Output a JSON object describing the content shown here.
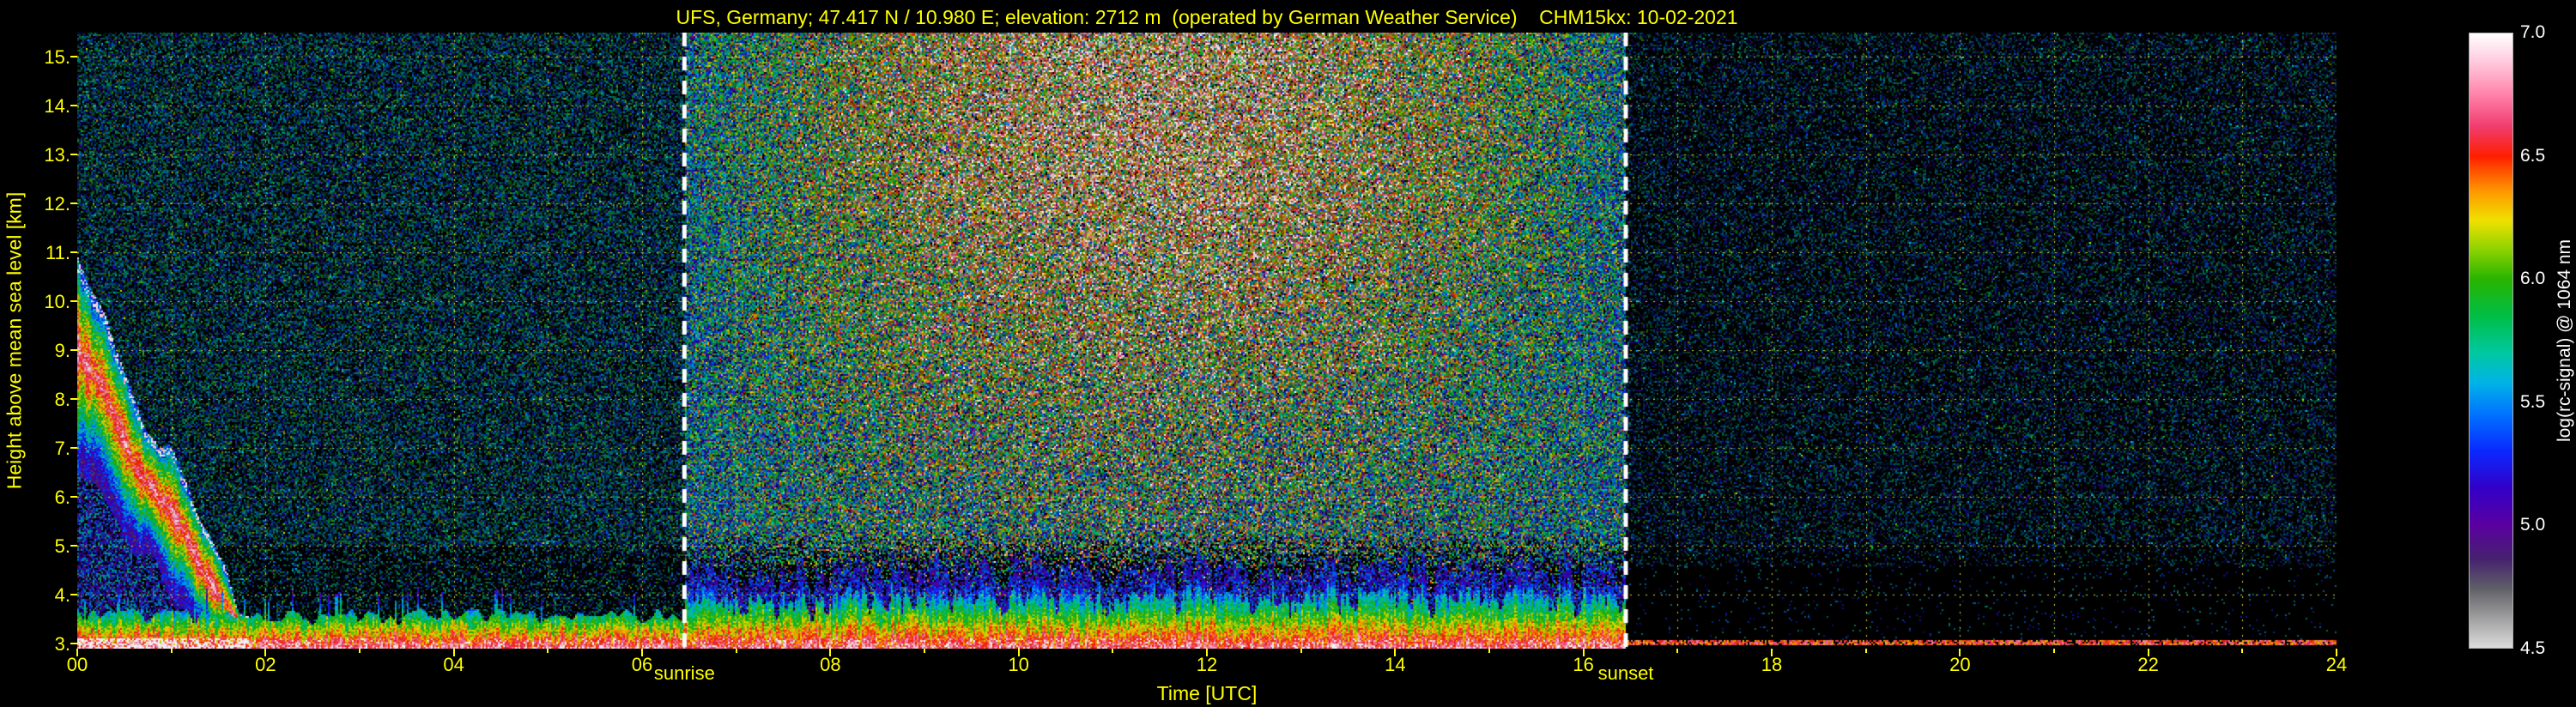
{
  "colors": {
    "background": "#000000",
    "axis_text": "#ffff00",
    "grid": "#dcdc3c",
    "event_line": "#ffffff",
    "colorbar_text": "#ffffff"
  },
  "chart_data": {
    "type": "heatmap",
    "title": "UFS, Germany; 47.417 N / 10.980 E; elevation: 2712 m  (operated by German Weather Service)    CHM15kx: 10-02-2021",
    "xlabel": "Time [UTC]",
    "ylabel": "Height above mean sea level [km]",
    "colorbar_label": "log(rc-signal) @ 1064 nm",
    "x_range_hours": [
      0,
      24
    ],
    "x_tick_hours": [
      0,
      2,
      4,
      6,
      8,
      10,
      12,
      14,
      16,
      18,
      20,
      22,
      24
    ],
    "x_tick_labels": [
      "00",
      "02",
      "04",
      "06",
      "08",
      "10",
      "12",
      "14",
      "16",
      "18",
      "20",
      "22",
      "24"
    ],
    "x_gridline_hours": [
      1,
      2,
      3,
      4,
      5,
      6,
      7,
      8,
      9,
      10,
      11,
      12,
      13,
      14,
      15,
      16,
      17,
      18,
      19,
      20,
      21,
      22,
      23
    ],
    "y_range_km": [
      2.9,
      15.5
    ],
    "y_tick_km": [
      3,
      4,
      5,
      6,
      7,
      8,
      9,
      10,
      11,
      12,
      13,
      14,
      15
    ],
    "y_tick_labels": [
      "3.",
      "4.",
      "5.",
      "6.",
      "7.",
      "8.",
      "9.",
      "10.",
      "11.",
      "12.",
      "13.",
      "14.",
      "15."
    ],
    "colorbar_range": [
      4.5,
      7.0
    ],
    "colorbar_tick_values": [
      4.5,
      5.0,
      5.5,
      6.0,
      6.5,
      7.0
    ],
    "colorbar_tick_labels": [
      "4.5",
      "5.0",
      "5.5",
      "6.0",
      "6.5",
      "7.0"
    ],
    "grid": true,
    "legend_position": "right-colorbar",
    "events": [
      {
        "label": "sunrise",
        "hour": 6.45
      },
      {
        "label": "sunset",
        "hour": 16.45
      }
    ],
    "colormap_stops": [
      [
        4.5,
        "#dcdcdc"
      ],
      [
        4.62,
        "#a0a0a0"
      ],
      [
        4.74,
        "#606068"
      ],
      [
        4.86,
        "#46226e"
      ],
      [
        5.0,
        "#5a00a0"
      ],
      [
        5.15,
        "#3200c8"
      ],
      [
        5.3,
        "#0a28ff"
      ],
      [
        5.45,
        "#0073ff"
      ],
      [
        5.58,
        "#00b4e6"
      ],
      [
        5.7,
        "#00c8a0"
      ],
      [
        5.85,
        "#00be46"
      ],
      [
        6.0,
        "#28b400"
      ],
      [
        6.12,
        "#8cd200"
      ],
      [
        6.24,
        "#f0e100"
      ],
      [
        6.36,
        "#ff9600"
      ],
      [
        6.5,
        "#ff1e00"
      ],
      [
        6.62,
        "#f03c6e"
      ],
      [
        6.75,
        "#ff82aa"
      ],
      [
        6.88,
        "#ffc8dc"
      ],
      [
        7.0,
        "#ffffff"
      ]
    ],
    "features": [
      {
        "type": "cloud_band",
        "time_utc": [
          0.0,
          1.85
        ],
        "height_km": [
          3.0,
          10.7
        ],
        "description": "precipitating cloud band descending from ~10.5 km at 00 UTC to ~3 km by ~01:45, strong red/yellow backscatter core with white top rim"
      },
      {
        "type": "aerosol_boundary_layer",
        "time_utc": [
          0.0,
          16.5
        ],
        "height_km": [
          3.0,
          4.4
        ],
        "description": "near-surface aerosol layer, red core near 3 km, convective plumes up to ~4.4 km during daytime"
      },
      {
        "type": "surface_echo",
        "time_utc": [
          16.5,
          24.0
        ],
        "height_km": [
          3.0,
          3.1
        ],
        "description": "thin residual near-surface echo after sunset, otherwise black below ~4.6 km"
      },
      {
        "type": "solar_background_noise",
        "time_utc": [
          6.45,
          16.45
        ],
        "description": "enhanced daytime solar background noise, strongest (white/pink/orange) around midday at upper heights"
      },
      {
        "type": "night_background_noise",
        "time_utc": [
          16.45,
          24.0
        ],
        "description": "sparse dim green/blue speckle noise at night"
      }
    ]
  },
  "signal_model": {
    "seed": 1234567,
    "sunrise_hour": 6.45,
    "sunset_hour": 16.45,
    "night_background": {
      "density": 0.68,
      "mean": 5.58,
      "sd": 0.28,
      "bright_lo": 0.16,
      "bright_hi": 0.72
    },
    "late_night_background": {
      "density": 0.45,
      "mean": 5.5,
      "sd": 0.28,
      "bright_lo": 0.14,
      "bright_hi": 0.6
    },
    "day_background": {
      "density": 0.97,
      "mean_base": 5.58,
      "midday_boost": 1.0,
      "sd_base": 0.4,
      "sd_boost": 0.18,
      "bright_lo": 0.5
    },
    "descending_cloud": {
      "t_end": 1.85,
      "top_start_km": 10.7,
      "top_slope_km_per_h": 4.1,
      "bottom_start_km": 6.3,
      "bottom_slope_km_per_h": 2.1,
      "core_amplitude": 1.6
    },
    "aerosol_layer": {
      "surface_value": 6.6,
      "lapse_night": 1.45,
      "lapse_day": 1.1,
      "night_top_km": 3.55,
      "day_top_km": 3.95
    },
    "residual_line": {
      "height_km": 3.06,
      "value": 6.45
    }
  }
}
